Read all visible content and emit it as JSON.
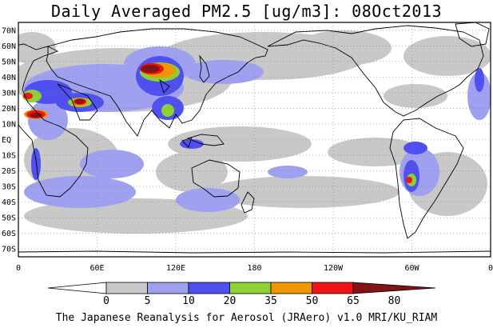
{
  "title": "Daily Averaged PM2.5 [ug/m3]: 08Oct2013",
  "credit": "The Japanese Reanalysis for Aerosol (JRAero) v1.0 MRI/KU_RIAM",
  "map": {
    "projection": "equirectangular",
    "lon_range": [
      0,
      360
    ],
    "lat_range": [
      -75,
      75
    ],
    "background": "#ffffff",
    "lat_labels": [
      "70N",
      "60N",
      "50N",
      "40N",
      "30N",
      "20N",
      "10N",
      "EQ",
      "10S",
      "20S",
      "30S",
      "40S",
      "50S",
      "60S",
      "70S"
    ],
    "lon_labels": [
      "0",
      "60E",
      "120E",
      "180",
      "120W",
      "60W",
      "0"
    ],
    "grid": "dotted"
  },
  "colorbar": {
    "levels": [
      "0",
      "5",
      "10",
      "20",
      "35",
      "50",
      "65",
      "80"
    ],
    "colors": [
      "#ffffff",
      "#c8c8c8",
      "#a0a0f0",
      "#5050f0",
      "#8cd232",
      "#f09600",
      "#f01414",
      "#821414"
    ]
  }
}
